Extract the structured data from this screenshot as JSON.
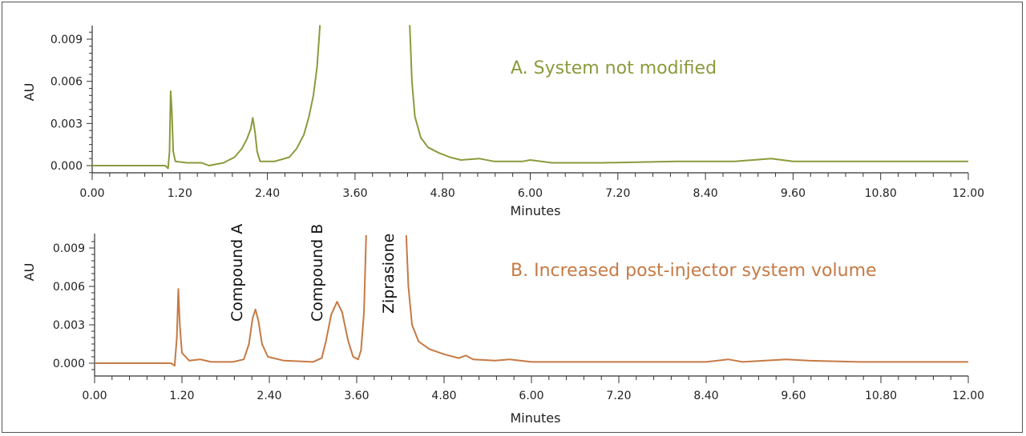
{
  "chart_data": [
    {
      "type": "line",
      "title": "A. System not modified",
      "xlabel": "Minutes",
      "ylabel": "AU",
      "xlim": [
        0,
        12
      ],
      "ylim": [
        -0.0007,
        0.01
      ],
      "x_ticks": [
        "0.00",
        "1.20",
        "2.40",
        "3.60",
        "4.80",
        "6.00",
        "7.20",
        "8.40",
        "9.60",
        "10.80",
        "12.00"
      ],
      "y_ticks": [
        "0.000",
        "0.003",
        "0.006",
        "0.009"
      ],
      "color": "#8c9a3c",
      "grid": false,
      "annotations": [],
      "series": [
        {
          "segments": [
            [
              [
                0,
                0
              ],
              [
                0.5,
                0
              ],
              [
                1.0,
                0
              ],
              [
                1.04,
                -0.0002
              ],
              [
                1.06,
                0.001
              ],
              [
                1.075,
                0.0053
              ],
              [
                1.09,
                0.004
              ],
              [
                1.11,
                0.001
              ],
              [
                1.14,
                0.0003
              ],
              [
                1.3,
                0.0002
              ],
              [
                1.5,
                0.0002
              ],
              [
                1.6,
                0
              ],
              [
                1.8,
                0.0002
              ],
              [
                1.95,
                0.0006
              ],
              [
                2.05,
                0.0012
              ],
              [
                2.12,
                0.0019
              ],
              [
                2.17,
                0.0026
              ],
              [
                2.2,
                0.0034
              ],
              [
                2.23,
                0.0024
              ],
              [
                2.26,
                0.001
              ],
              [
                2.3,
                0.0003
              ],
              [
                2.5,
                0.0003
              ],
              [
                2.7,
                0.0006
              ],
              [
                2.8,
                0.0012
              ],
              [
                2.9,
                0.0022
              ],
              [
                2.97,
                0.0035
              ],
              [
                3.03,
                0.005
              ],
              [
                3.08,
                0.007
              ],
              [
                3.12,
                0.01
              ]
            ],
            [
              [
                4.35,
                0.01
              ],
              [
                4.38,
                0.006
              ],
              [
                4.42,
                0.0035
              ],
              [
                4.5,
                0.002
              ],
              [
                4.6,
                0.0013
              ],
              [
                4.75,
                0.0009
              ],
              [
                4.9,
                0.0006
              ],
              [
                5.05,
                0.0004
              ],
              [
                5.3,
                0.0005
              ],
              [
                5.5,
                0.0003
              ],
              [
                5.9,
                0.0003
              ],
              [
                6.0,
                0.0004
              ],
              [
                6.3,
                0.0002
              ],
              [
                7,
                0.0002
              ],
              [
                8,
                0.0003
              ],
              [
                8.8,
                0.0003
              ],
              [
                9.3,
                0.0005
              ],
              [
                9.6,
                0.0003
              ],
              [
                10.5,
                0.0003
              ],
              [
                12,
                0.0003
              ]
            ]
          ]
        }
      ]
    },
    {
      "type": "line",
      "title": "B. Increased post-injector system volume",
      "xlabel": "Minutes",
      "ylabel": "AU",
      "xlim": [
        0,
        12
      ],
      "ylim": [
        -0.0007,
        0.01
      ],
      "x_ticks": [
        "0.00",
        "1.20",
        "2.40",
        "3.60",
        "4.80",
        "6.00",
        "7.20",
        "8.40",
        "9.60",
        "10.80",
        "12.00"
      ],
      "y_ticks": [
        "0.000",
        "0.003",
        "0.006",
        "0.009"
      ],
      "color": "#c57a45",
      "grid": false,
      "annotations": [
        {
          "label": "Compound A",
          "x": 1.95
        },
        {
          "label": "Compound B",
          "x": 3.05
        },
        {
          "label": "Ziprasione",
          "x": 4.03
        }
      ],
      "series": [
        {
          "segments": [
            [
              [
                0,
                0
              ],
              [
                0.5,
                0
              ],
              [
                1.05,
                0
              ],
              [
                1.1,
                -0.0002
              ],
              [
                1.13,
                0.002
              ],
              [
                1.15,
                0.0058
              ],
              [
                1.17,
                0.003
              ],
              [
                1.2,
                0.0008
              ],
              [
                1.3,
                0.0002
              ],
              [
                1.45,
                0.0003
              ],
              [
                1.6,
                0.0001
              ],
              [
                1.9,
                0.0001
              ],
              [
                2.05,
                0.0003
              ],
              [
                2.12,
                0.0015
              ],
              [
                2.17,
                0.0035
              ],
              [
                2.21,
                0.0042
              ],
              [
                2.25,
                0.0033
              ],
              [
                2.3,
                0.0015
              ],
              [
                2.38,
                0.0005
              ],
              [
                2.6,
                0.0002
              ],
              [
                3.0,
                0.0001
              ],
              [
                3.12,
                0.0004
              ],
              [
                3.18,
                0.0018
              ],
              [
                3.25,
                0.0038
              ],
              [
                3.33,
                0.0048
              ],
              [
                3.4,
                0.004
              ],
              [
                3.48,
                0.0018
              ],
              [
                3.55,
                0.0005
              ],
              [
                3.62,
                0.0003
              ],
              [
                3.66,
                0.001
              ],
              [
                3.7,
                0.004
              ],
              [
                3.73,
                0.01
              ]
            ],
            [
              [
                4.28,
                0.01
              ],
              [
                4.31,
                0.006
              ],
              [
                4.36,
                0.003
              ],
              [
                4.45,
                0.0017
              ],
              [
                4.6,
                0.0011
              ],
              [
                4.8,
                0.0007
              ],
              [
                5.0,
                0.0004
              ],
              [
                5.1,
                0.0006
              ],
              [
                5.2,
                0.0003
              ],
              [
                5.5,
                0.0002
              ],
              [
                5.7,
                0.0003
              ],
              [
                6.0,
                0.0001
              ],
              [
                7,
                0.0001
              ],
              [
                8.4,
                0.0001
              ],
              [
                8.7,
                0.0003
              ],
              [
                8.9,
                0.0001
              ],
              [
                9.5,
                0.0003
              ],
              [
                9.8,
                0.0002
              ],
              [
                10.5,
                0.0001
              ],
              [
                12,
                0.0001
              ]
            ]
          ]
        }
      ]
    }
  ]
}
